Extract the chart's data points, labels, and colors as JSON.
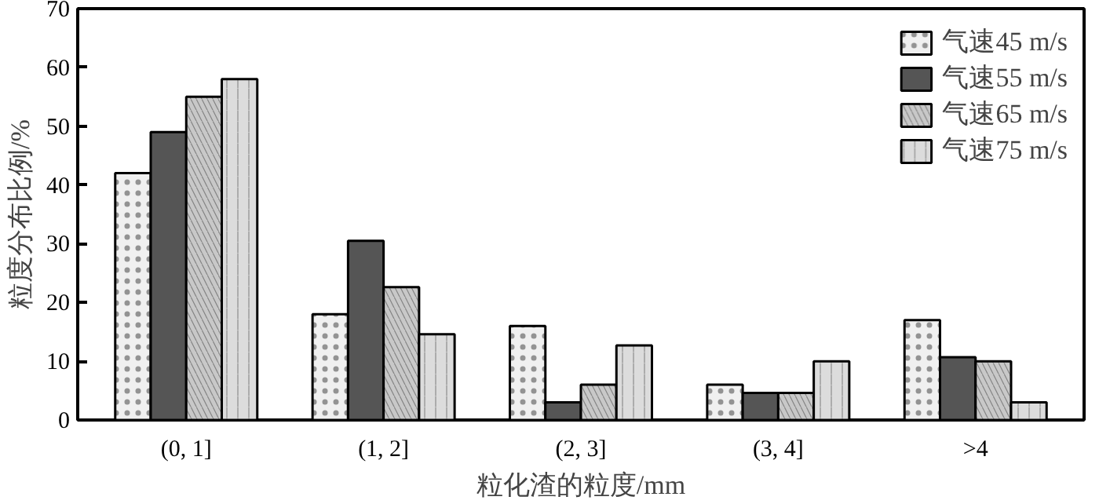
{
  "chart_data": {
    "type": "bar",
    "xlabel": "粒化渣的粒度/mm",
    "ylabel": "粒度分布比例/%",
    "categories": [
      "(0, 1]",
      "(1, 2]",
      "(2, 3]",
      "(3, 4]",
      ">4"
    ],
    "series": [
      {
        "name": "气速45 m/s",
        "color": "#f0f0f0",
        "values": [
          42,
          18,
          16,
          6,
          17
        ]
      },
      {
        "name": "气速55 m/s",
        "color": "#555555",
        "values": [
          49,
          30.5,
          3,
          4.6,
          10.7
        ]
      },
      {
        "name": "气速65 m/s",
        "color": "#c8c8c8",
        "values": [
          55,
          22.6,
          6,
          4.6,
          10
        ]
      },
      {
        "name": "气速75 m/s",
        "color": "#dcdcdc",
        "values": [
          58,
          14.6,
          12.7,
          10,
          3
        ]
      }
    ],
    "ylim": [
      0,
      70
    ],
    "yticks": [
      0,
      10,
      20,
      30,
      40,
      50,
      60,
      70
    ],
    "grid": false,
    "legend": "top right"
  }
}
